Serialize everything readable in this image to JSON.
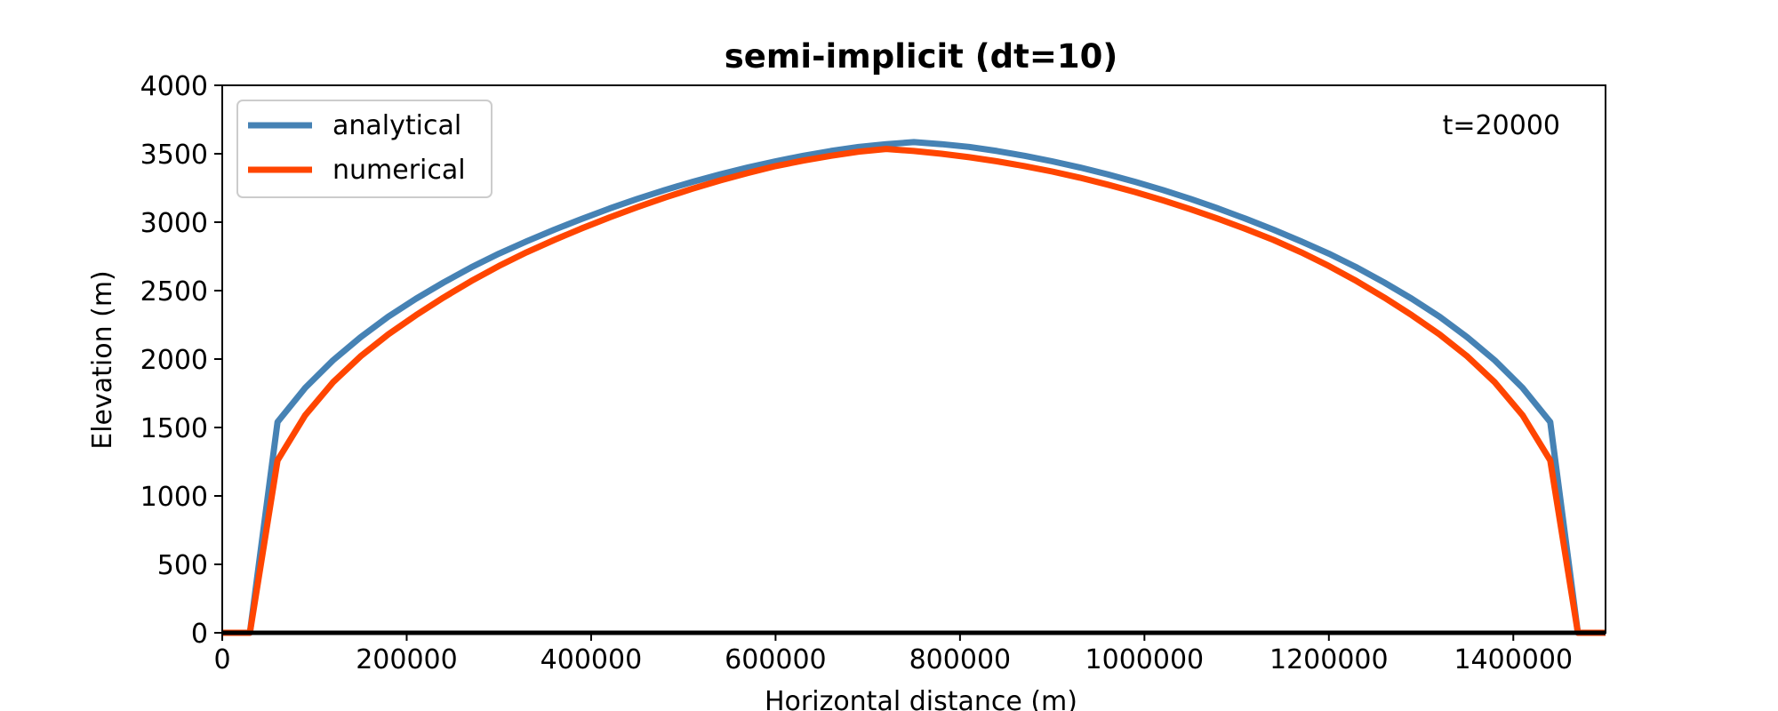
{
  "chart_data": {
    "type": "line",
    "title": "semi-implicit (dt=10)",
    "xlabel": "Horizontal distance (m)",
    "ylabel": "Elevation (m)",
    "annotation": "t=20000",
    "xlim": [
      0,
      1500000
    ],
    "ylim": [
      0,
      4000
    ],
    "xticks": [
      0,
      200000,
      400000,
      600000,
      800000,
      1000000,
      1200000,
      1400000
    ],
    "yticks": [
      0,
      500,
      1000,
      1500,
      2000,
      2500,
      3000,
      3500,
      4000
    ],
    "legend_position": "top-left",
    "grid": false,
    "series": [
      {
        "name": "analytical",
        "color": "#4682b4",
        "x": [
          0,
          30000,
          60000,
          90000,
          120000,
          150000,
          180000,
          210000,
          240000,
          270000,
          300000,
          330000,
          360000,
          390000,
          420000,
          450000,
          480000,
          510000,
          540000,
          570000,
          600000,
          630000,
          660000,
          690000,
          720000,
          750000,
          780000,
          810000,
          840000,
          870000,
          900000,
          930000,
          960000,
          990000,
          1020000,
          1050000,
          1080000,
          1110000,
          1140000,
          1170000,
          1200000,
          1230000,
          1260000,
          1290000,
          1320000,
          1350000,
          1380000,
          1410000,
          1440000,
          1470000,
          1500000
        ],
        "y": [
          0,
          0,
          1540,
          1790,
          1990,
          2160,
          2310,
          2440,
          2560,
          2670,
          2770,
          2860,
          2945,
          3025,
          3100,
          3170,
          3235,
          3295,
          3350,
          3400,
          3445,
          3485,
          3520,
          3550,
          3570,
          3585,
          3570,
          3550,
          3520,
          3485,
          3445,
          3400,
          3350,
          3295,
          3235,
          3170,
          3100,
          3025,
          2945,
          2860,
          2770,
          2670,
          2560,
          2440,
          2310,
          2160,
          1990,
          1790,
          1540,
          0,
          0
        ]
      },
      {
        "name": "numerical",
        "color": "#ff4500",
        "x": [
          0,
          30000,
          60000,
          90000,
          120000,
          150000,
          180000,
          210000,
          240000,
          270000,
          300000,
          330000,
          360000,
          390000,
          420000,
          450000,
          480000,
          510000,
          540000,
          570000,
          600000,
          630000,
          660000,
          690000,
          720000,
          750000,
          780000,
          810000,
          840000,
          870000,
          900000,
          930000,
          960000,
          990000,
          1020000,
          1050000,
          1080000,
          1110000,
          1140000,
          1170000,
          1200000,
          1230000,
          1260000,
          1290000,
          1320000,
          1350000,
          1380000,
          1410000,
          1440000,
          1470000,
          1500000
        ],
        "y": [
          0,
          0,
          1260,
          1590,
          1830,
          2020,
          2180,
          2320,
          2450,
          2570,
          2680,
          2780,
          2870,
          2955,
          3035,
          3110,
          3180,
          3245,
          3305,
          3360,
          3410,
          3450,
          3485,
          3515,
          3535,
          3520,
          3500,
          3475,
          3445,
          3410,
          3370,
          3325,
          3275,
          3220,
          3160,
          3095,
          3025,
          2950,
          2870,
          2780,
          2680,
          2570,
          2450,
          2320,
          2180,
          2020,
          1830,
          1590,
          1260,
          0,
          0
        ]
      }
    ],
    "baseline_y": 0,
    "baseline_color": "#000000"
  }
}
